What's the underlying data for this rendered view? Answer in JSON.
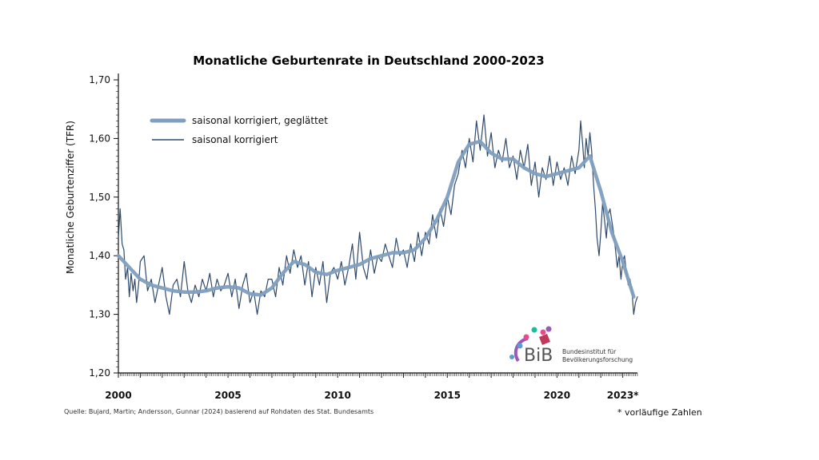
{
  "chart_data": {
    "type": "line",
    "title": "Monatliche Geburtenrate in Deutschland 2000-2023",
    "ylabel": "Monatliche Geburtenziffer (TFR)",
    "xlabel": "",
    "ylim": [
      1.2,
      1.7
    ],
    "xlim": [
      2000,
      2023.67
    ],
    "y_ticks": [
      1.2,
      1.3,
      1.4,
      1.5,
      1.6,
      1.7
    ],
    "y_tick_labels": [
      "1,20",
      "1,30",
      "1,40",
      "1,50",
      "1,60",
      "1,70"
    ],
    "x_ticks": [
      2000,
      2005,
      2010,
      2015,
      2020,
      2023
    ],
    "x_tick_labels": [
      "2000",
      "2005",
      "2010",
      "2015",
      "2020",
      "2023*"
    ],
    "legend_position": "top-left",
    "grid": false,
    "series": [
      {
        "name": "saisonal korrigiert, geglättet",
        "style": "thick",
        "color": "#7f9fbf",
        "x": [
          2000.0,
          2000.5,
          2001.0,
          2001.5,
          2002.0,
          2002.5,
          2003.0,
          2003.5,
          2004.0,
          2004.5,
          2005.0,
          2005.5,
          2006.0,
          2006.5,
          2007.0,
          2007.5,
          2008.0,
          2008.5,
          2009.0,
          2009.5,
          2010.0,
          2010.5,
          2011.0,
          2011.5,
          2012.0,
          2012.5,
          2013.0,
          2013.5,
          2014.0,
          2014.5,
          2015.0,
          2015.5,
          2016.0,
          2016.5,
          2017.0,
          2017.5,
          2018.0,
          2018.5,
          2019.0,
          2019.5,
          2020.0,
          2020.5,
          2021.0,
          2021.5,
          2022.0,
          2022.5,
          2023.0,
          2023.5
        ],
        "y": [
          1.4,
          1.38,
          1.36,
          1.35,
          1.345,
          1.34,
          1.338,
          1.338,
          1.34,
          1.345,
          1.347,
          1.345,
          1.335,
          1.333,
          1.345,
          1.37,
          1.39,
          1.385,
          1.372,
          1.368,
          1.375,
          1.38,
          1.385,
          1.395,
          1.4,
          1.405,
          1.405,
          1.41,
          1.43,
          1.46,
          1.5,
          1.56,
          1.59,
          1.595,
          1.575,
          1.565,
          1.565,
          1.55,
          1.54,
          1.535,
          1.54,
          1.545,
          1.55,
          1.57,
          1.51,
          1.44,
          1.39,
          1.33
        ]
      },
      {
        "name": "saisonal korrigiert",
        "style": "thin",
        "color": "#2f4a6b",
        "x": [
          2000.0,
          2000.08,
          2000.17,
          2000.25,
          2000.33,
          2000.42,
          2000.5,
          2000.58,
          2000.67,
          2000.75,
          2000.83,
          2000.92,
          2001.0,
          2001.17,
          2001.33,
          2001.5,
          2001.67,
          2001.83,
          2002.0,
          2002.17,
          2002.33,
          2002.5,
          2002.67,
          2002.83,
          2003.0,
          2003.17,
          2003.33,
          2003.5,
          2003.67,
          2003.83,
          2004.0,
          2004.17,
          2004.33,
          2004.5,
          2004.67,
          2004.83,
          2005.0,
          2005.17,
          2005.33,
          2005.5,
          2005.67,
          2005.83,
          2006.0,
          2006.17,
          2006.33,
          2006.5,
          2006.67,
          2006.83,
          2007.0,
          2007.17,
          2007.33,
          2007.5,
          2007.67,
          2007.83,
          2008.0,
          2008.17,
          2008.33,
          2008.5,
          2008.67,
          2008.83,
          2009.0,
          2009.17,
          2009.33,
          2009.5,
          2009.67,
          2009.83,
          2010.0,
          2010.17,
          2010.33,
          2010.5,
          2010.67,
          2010.83,
          2011.0,
          2011.17,
          2011.33,
          2011.5,
          2011.67,
          2011.83,
          2012.0,
          2012.17,
          2012.33,
          2012.5,
          2012.67,
          2012.83,
          2013.0,
          2013.17,
          2013.33,
          2013.5,
          2013.67,
          2013.83,
          2014.0,
          2014.17,
          2014.33,
          2014.5,
          2014.67,
          2014.83,
          2015.0,
          2015.17,
          2015.33,
          2015.5,
          2015.67,
          2015.83,
          2016.0,
          2016.17,
          2016.33,
          2016.5,
          2016.67,
          2016.83,
          2017.0,
          2017.17,
          2017.33,
          2017.5,
          2017.67,
          2017.83,
          2018.0,
          2018.17,
          2018.33,
          2018.5,
          2018.67,
          2018.83,
          2019.0,
          2019.17,
          2019.33,
          2019.5,
          2019.67,
          2019.83,
          2020.0,
          2020.17,
          2020.33,
          2020.5,
          2020.67,
          2020.83,
          2021.0,
          2021.08,
          2021.17,
          2021.25,
          2021.33,
          2021.42,
          2021.5,
          2021.58,
          2021.67,
          2021.75,
          2021.83,
          2021.92,
          2022.0,
          2022.08,
          2022.17,
          2022.25,
          2022.33,
          2022.42,
          2022.5,
          2022.58,
          2022.67,
          2022.75,
          2022.83,
          2022.92,
          2023.0,
          2023.08,
          2023.17,
          2023.25,
          2023.33,
          2023.42,
          2023.5,
          2023.58,
          2023.67
        ],
        "y": [
          1.43,
          1.48,
          1.42,
          1.41,
          1.36,
          1.38,
          1.33,
          1.37,
          1.34,
          1.36,
          1.32,
          1.35,
          1.39,
          1.4,
          1.34,
          1.36,
          1.32,
          1.35,
          1.38,
          1.33,
          1.3,
          1.35,
          1.36,
          1.33,
          1.39,
          1.34,
          1.32,
          1.35,
          1.33,
          1.36,
          1.34,
          1.37,
          1.33,
          1.36,
          1.34,
          1.35,
          1.37,
          1.33,
          1.36,
          1.31,
          1.35,
          1.37,
          1.32,
          1.34,
          1.3,
          1.34,
          1.33,
          1.36,
          1.36,
          1.33,
          1.38,
          1.35,
          1.4,
          1.37,
          1.41,
          1.38,
          1.4,
          1.35,
          1.39,
          1.33,
          1.38,
          1.35,
          1.39,
          1.32,
          1.37,
          1.38,
          1.36,
          1.39,
          1.35,
          1.38,
          1.42,
          1.36,
          1.44,
          1.38,
          1.36,
          1.41,
          1.37,
          1.4,
          1.39,
          1.42,
          1.4,
          1.38,
          1.43,
          1.4,
          1.41,
          1.38,
          1.42,
          1.39,
          1.44,
          1.4,
          1.44,
          1.42,
          1.47,
          1.43,
          1.48,
          1.45,
          1.5,
          1.47,
          1.52,
          1.54,
          1.58,
          1.55,
          1.6,
          1.56,
          1.63,
          1.58,
          1.64,
          1.57,
          1.61,
          1.55,
          1.58,
          1.56,
          1.6,
          1.55,
          1.57,
          1.53,
          1.58,
          1.55,
          1.59,
          1.52,
          1.56,
          1.5,
          1.55,
          1.53,
          1.57,
          1.52,
          1.56,
          1.53,
          1.55,
          1.52,
          1.57,
          1.54,
          1.58,
          1.63,
          1.59,
          1.55,
          1.6,
          1.57,
          1.61,
          1.58,
          1.52,
          1.48,
          1.43,
          1.4,
          1.44,
          1.49,
          1.46,
          1.43,
          1.47,
          1.48,
          1.46,
          1.44,
          1.41,
          1.38,
          1.4,
          1.36,
          1.39,
          1.4,
          1.37,
          1.35,
          1.36,
          1.34,
          1.3,
          1.32,
          1.33
        ]
      }
    ],
    "source_note": "Quelle: Bujard, Martin; Andersson, Gunnar (2024) basierend auf Rohdaten des Stat. Bundesamts",
    "footnote": "* vorläufige Zahlen"
  },
  "logo": {
    "abbrev": "BiB",
    "line1": "Bundesinstitut für",
    "line2": "Bevölkerungsforschung"
  }
}
